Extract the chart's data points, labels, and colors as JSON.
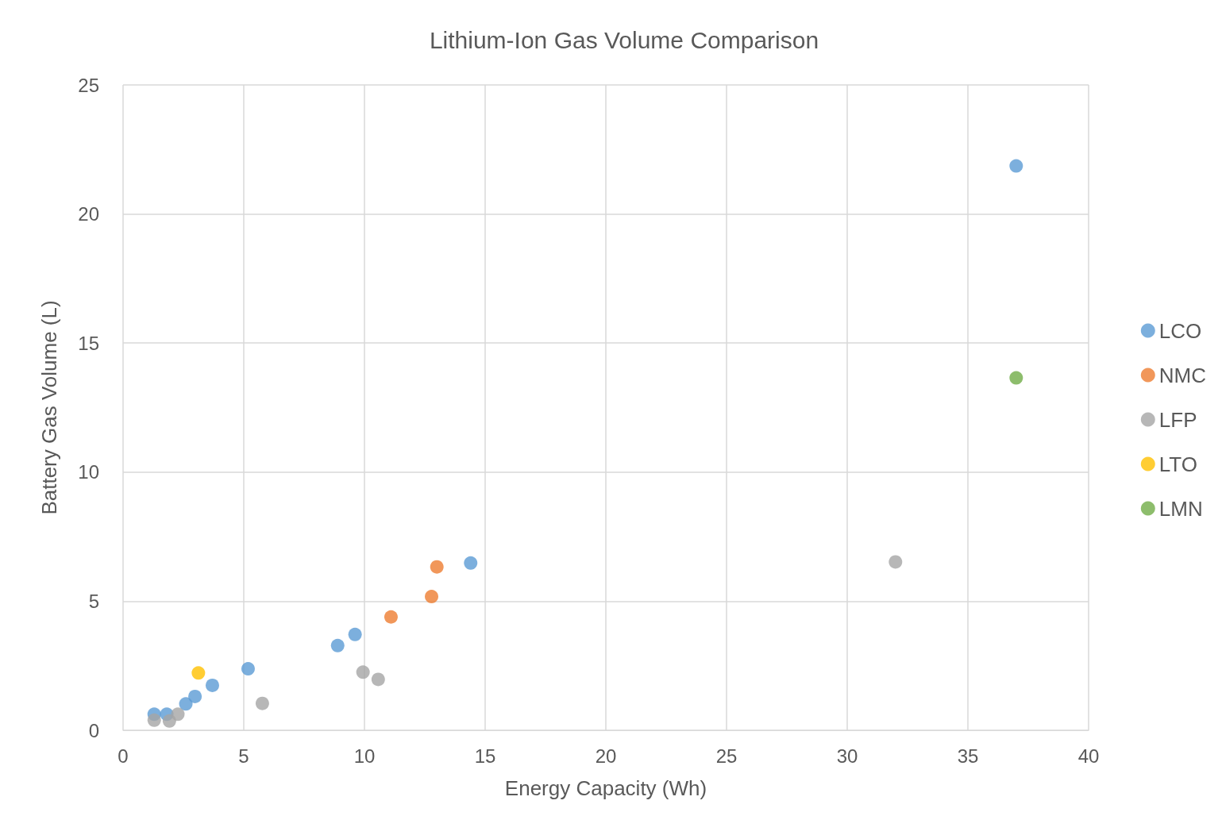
{
  "chart_data": {
    "type": "scatter",
    "title": "Lithium-Ion Gas Volume Comparison",
    "xlabel": "Energy Capacity (Wh)",
    "ylabel": "Battery Gas Volume (L)",
    "xlim": [
      0,
      40
    ],
    "xticks": [
      0,
      5,
      10,
      15,
      20,
      25,
      30,
      35,
      40
    ],
    "ylim": [
      0,
      25
    ],
    "yticks": [
      0,
      5,
      10,
      15,
      20,
      25
    ],
    "grid": true,
    "legend": "right",
    "marker": "circle",
    "series": [
      {
        "name": "LCO",
        "color": "#5b9bd5",
        "x": [
          1.29,
          1.81,
          2.6,
          2.98,
          3.7,
          5.18,
          8.89,
          9.61,
          14.4,
          37.0
        ],
        "values": [
          0.62,
          0.62,
          1.02,
          1.31,
          1.74,
          2.38,
          3.28,
          3.71,
          6.48,
          21.86
        ]
      },
      {
        "name": "NMC",
        "color": "#ed7d31",
        "x": [
          11.1,
          12.78,
          13.0
        ],
        "values": [
          4.39,
          5.18,
          6.33
        ]
      },
      {
        "name": "LFP",
        "color": "#a5a5a5",
        "x": [
          1.29,
          1.92,
          2.27,
          5.77,
          9.94,
          10.57,
          32.0
        ],
        "values": [
          0.39,
          0.36,
          0.62,
          1.04,
          2.25,
          1.97,
          6.52
        ]
      },
      {
        "name": "LTO",
        "color": "#ffc000",
        "x": [
          3.12
        ],
        "values": [
          2.22
        ]
      },
      {
        "name": "LMN",
        "color": "#70ad47",
        "x": [
          37.0
        ],
        "values": [
          13.65
        ]
      }
    ]
  }
}
